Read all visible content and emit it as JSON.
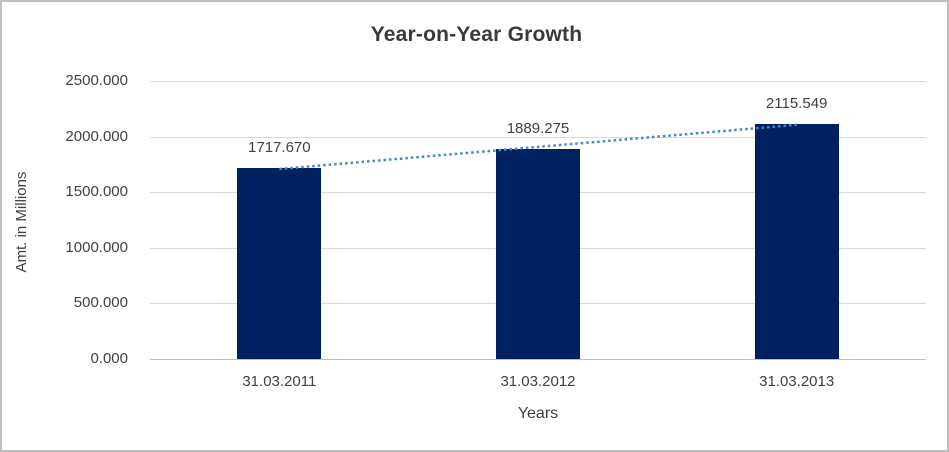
{
  "chart_data": {
    "type": "bar",
    "title": "Year-on-Year Growth",
    "categories": [
      "31.03.2011",
      "31.03.2012",
      "31.03.2013"
    ],
    "values": [
      1717.67,
      1889.275,
      2115.549
    ],
    "data_labels": [
      "1717.670",
      "1889.275",
      "2115.549"
    ],
    "xlabel": "Years",
    "ylabel": "Amt. in Millions",
    "ylim": [
      0,
      2500
    ],
    "ytick_step": 500,
    "ytick_labels": [
      "0.000",
      "500.000",
      "1000.000",
      "1500.000",
      "2000.000",
      "2500.000"
    ],
    "grid": true,
    "legend": "none",
    "trendline": {
      "type": "linear",
      "style": "dotted"
    },
    "colors": {
      "bar": "#002060",
      "trendline": "#4A86C8",
      "gridline": "#D9D9D9",
      "axis_line": "#BFBFBF",
      "text": "#404040",
      "title": "#3A3A3A",
      "border": "#BFBFBF",
      "background": "#FFFFFF"
    }
  }
}
